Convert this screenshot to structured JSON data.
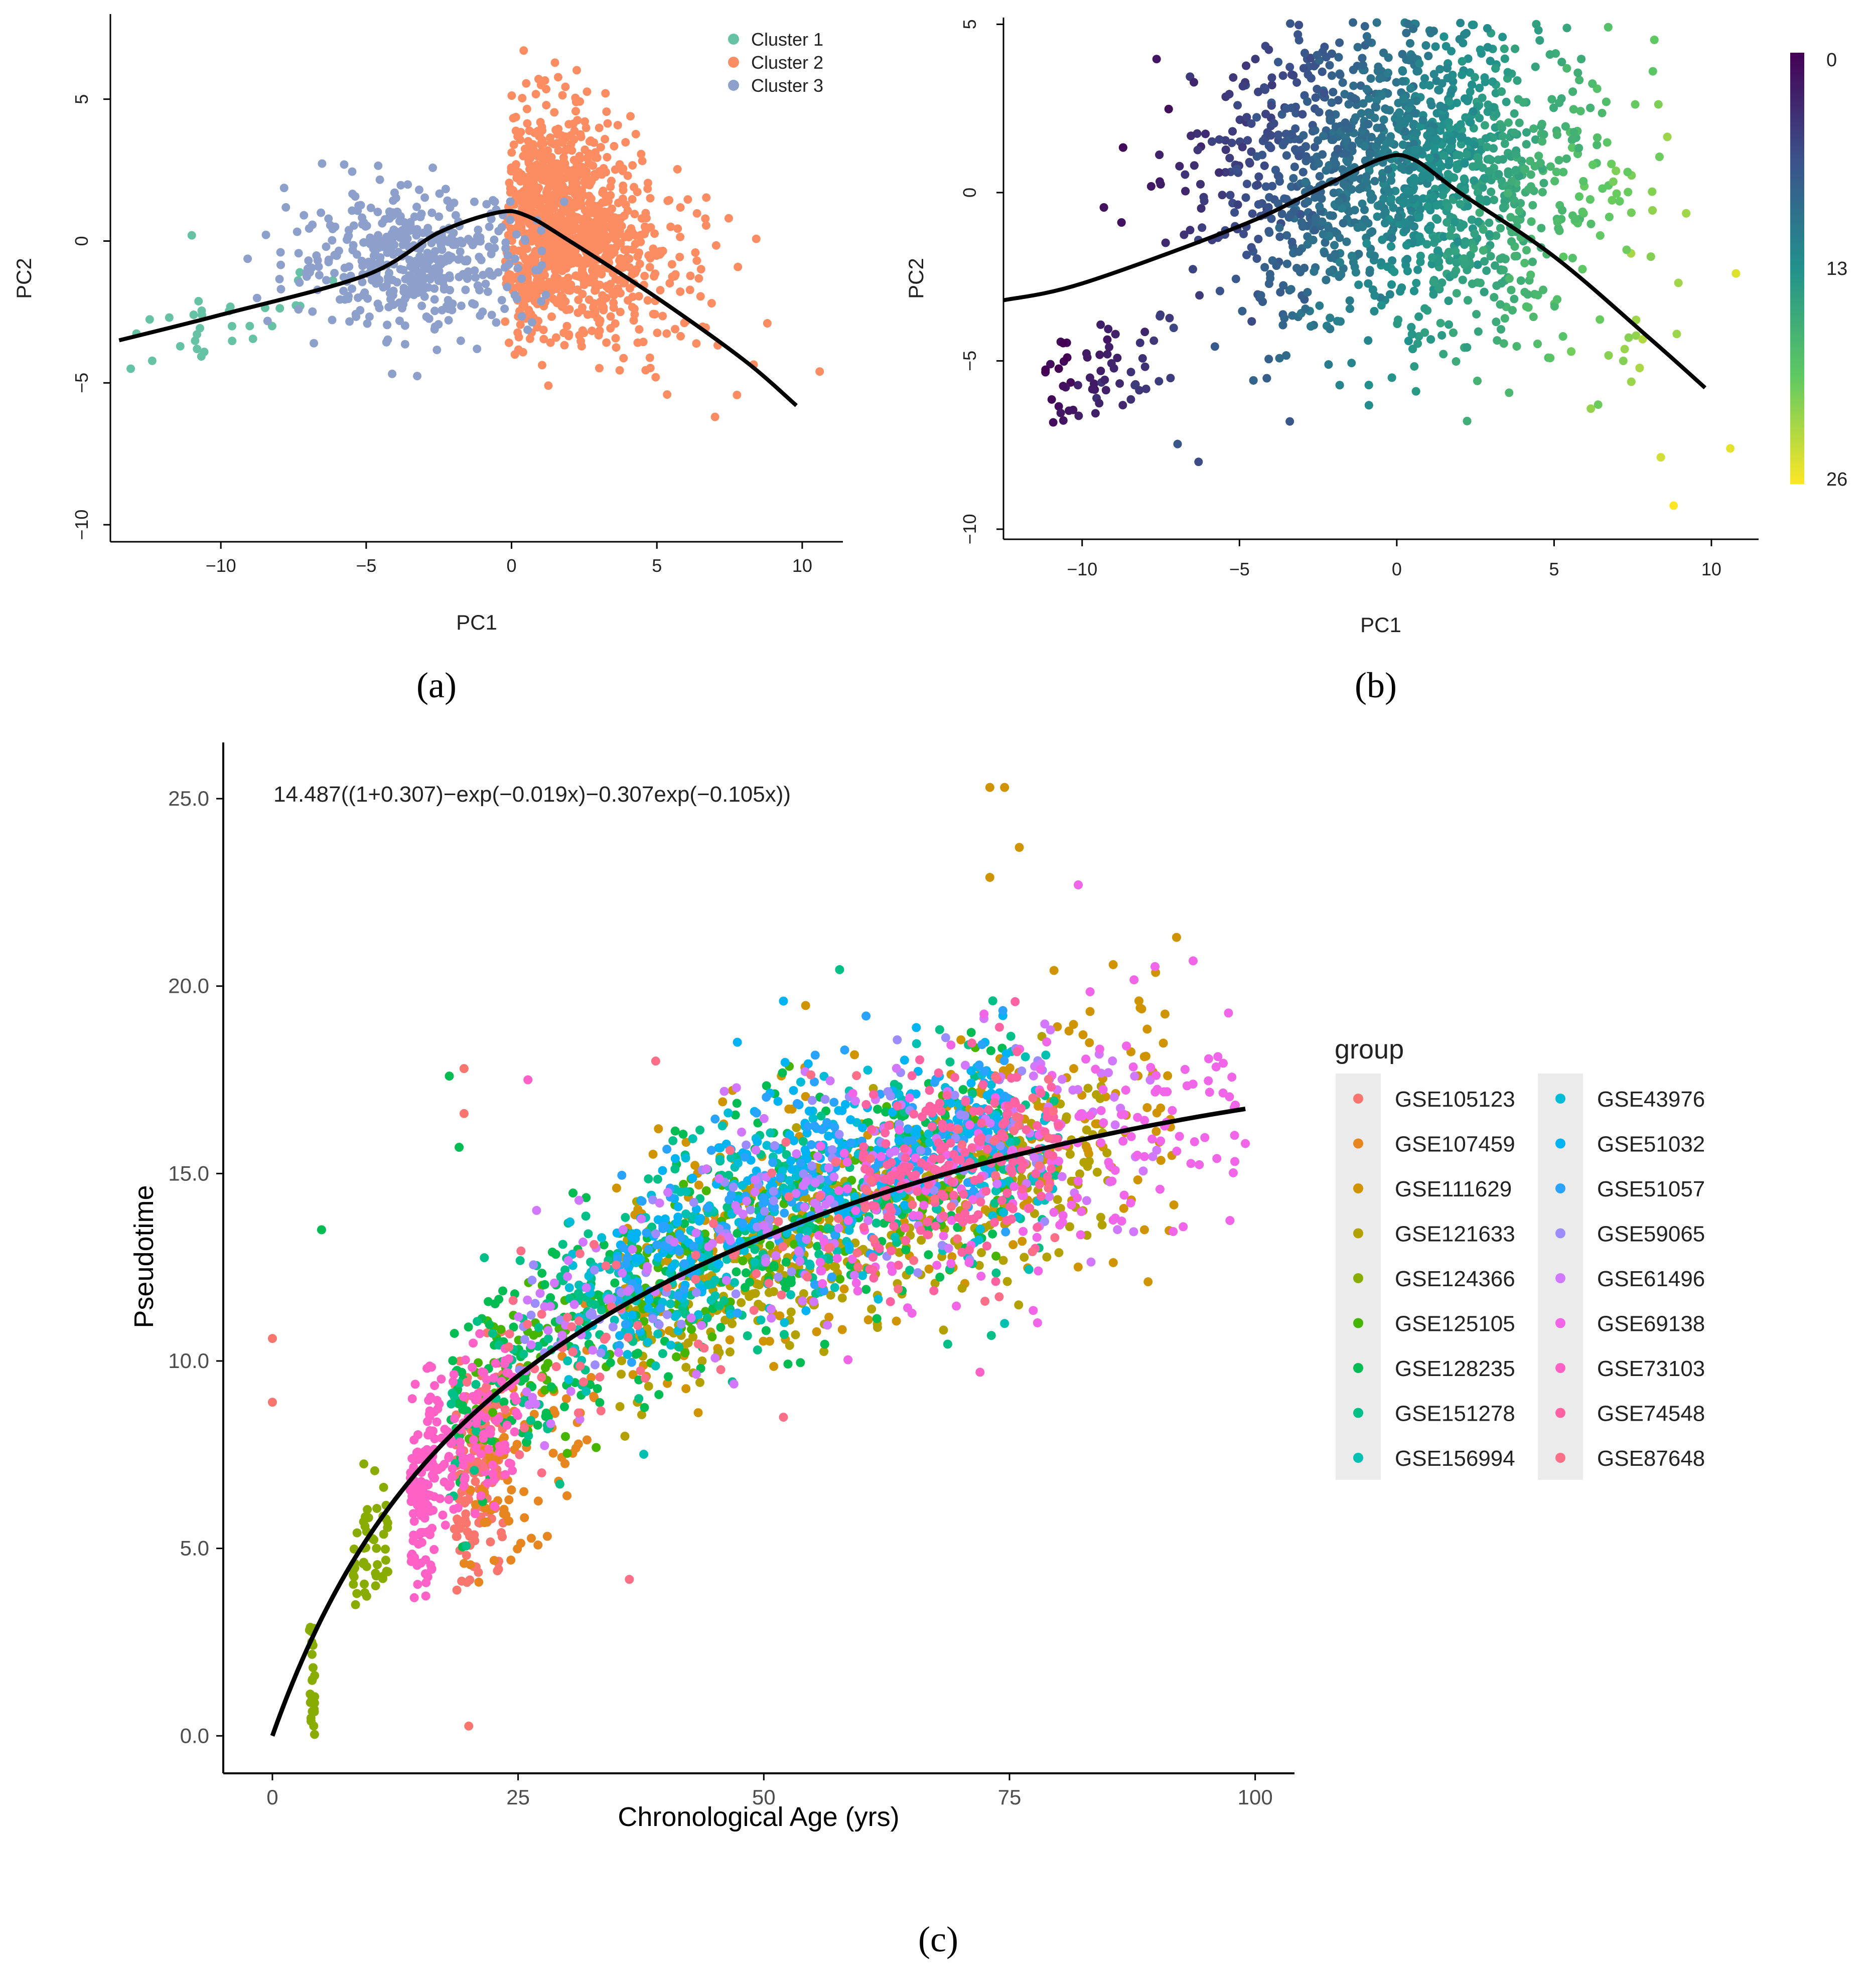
{
  "panels": {
    "a": {
      "caption": "(a)"
    },
    "b": {
      "caption": "(b)"
    },
    "c": {
      "caption": "(c)"
    }
  },
  "chart_data": [
    {
      "id": "a",
      "type": "scatter",
      "title": "",
      "xlabel": "PC1",
      "ylabel": "PC2",
      "xlim": [
        -13.8,
        11.4
      ],
      "ylim": [
        -10.6,
        8.0
      ],
      "xticks": [
        -10,
        -5,
        0,
        5,
        10
      ],
      "xtick_labels": [
        "−10",
        "−5",
        "0",
        "5",
        "10"
      ],
      "yticks": [
        -10,
        -5,
        0,
        5
      ],
      "ytick_labels": [
        "−10",
        "−5",
        "0",
        "5"
      ],
      "legend_position": "top-right",
      "series": [
        {
          "name": "Cluster 1",
          "color": "#66c2a5",
          "n": 32,
          "center": [
            -10.2,
            -2.7
          ],
          "spread": [
            2.0,
            0.9
          ]
        },
        {
          "name": "Cluster 2",
          "color": "#fc8d62",
          "n": 1150,
          "center": [
            1.6,
            0.6
          ],
          "spread": [
            2.3,
            1.9
          ]
        },
        {
          "name": "Cluster 3",
          "color": "#8da0cb",
          "n": 450,
          "center": [
            -3.4,
            -0.7
          ],
          "spread": [
            2.1,
            1.2
          ]
        }
      ],
      "outliers": [
        {
          "x": 10.6,
          "y": -4.6,
          "series": "Cluster 2"
        },
        {
          "x": 7.0,
          "y": -6.2,
          "series": "Cluster 2"
        },
        {
          "x": 8.8,
          "y": -2.9,
          "series": "Cluster 2"
        },
        {
          "x": -11.0,
          "y": 0.2,
          "series": "Cluster 1"
        },
        {
          "x": -13.1,
          "y": -4.5,
          "series": "Cluster 1"
        }
      ],
      "curve": [
        [
          -13.5,
          -3.5
        ],
        [
          -10,
          -2.6
        ],
        [
          -5,
          -1.2
        ],
        [
          -2.5,
          0.3
        ],
        [
          -0.5,
          1.0
        ],
        [
          0.5,
          0.9
        ],
        [
          2.0,
          0.0
        ],
        [
          5.0,
          -2.0
        ],
        [
          8.0,
          -4.2
        ],
        [
          9.8,
          -5.8
        ]
      ]
    },
    {
      "id": "b",
      "type": "scatter",
      "title": "",
      "xlabel": "PC1",
      "ylabel": "PC2",
      "xlim": [
        -12.5,
        11.5
      ],
      "ylim": [
        -10.3,
        5.2
      ],
      "xticks": [
        -10,
        -5,
        0,
        5,
        10
      ],
      "xtick_labels": [
        "−10",
        "−5",
        "0",
        "5",
        "10"
      ],
      "yticks": [
        -10,
        -5,
        0,
        5
      ],
      "ytick_labels": [
        "−10",
        "−5",
        "0",
        "5"
      ],
      "color_scale": {
        "name": "viridis",
        "min": 0,
        "max": 26,
        "ticks": [
          0,
          13,
          26
        ],
        "tick_labels": [
          "0",
          "13",
          "26"
        ]
      },
      "n_points": 2600,
      "cloud_center": [
        0.2,
        0.9
      ],
      "cloud_spread": [
        3.2,
        2.4
      ],
      "tail_points": {
        "n": 60,
        "x_range": [
          -11.2,
          -7.0
        ],
        "y_range": [
          -7.0,
          -4.5
        ]
      },
      "outliers": [
        {
          "x": 10.6,
          "y": -7.6,
          "value": 25
        },
        {
          "x": 8.8,
          "y": -9.3,
          "value": 26
        },
        {
          "x": 8.9,
          "y": -4.2,
          "value": 22
        },
        {
          "x": 7.2,
          "y": -5.0,
          "value": 21
        },
        {
          "x": 6.4,
          "y": -6.3,
          "value": 20
        },
        {
          "x": -6.3,
          "y": -8.0,
          "value": 6
        },
        {
          "x": -3.4,
          "y": -6.8,
          "value": 7
        }
      ],
      "curve": [
        [
          -12.5,
          -3.2
        ],
        [
          -10,
          -2.7
        ],
        [
          -5,
          -1.0
        ],
        [
          -2.5,
          0.1
        ],
        [
          -0.5,
          1.0
        ],
        [
          0.5,
          1.0
        ],
        [
          2.0,
          0.0
        ],
        [
          5.0,
          -1.9
        ],
        [
          8.0,
          -4.3
        ],
        [
          9.8,
          -5.8
        ]
      ]
    },
    {
      "id": "c",
      "type": "scatter",
      "title": "",
      "annotation": "14.487((1+0.307)−exp(−0.019x)−0.307exp(−0.105x))",
      "xlabel": "Chronological Age (yrs)",
      "ylabel": "Pseudotime",
      "xlim": [
        -5,
        104
      ],
      "ylim": [
        -1.0,
        26.5
      ],
      "xticks": [
        0,
        25,
        50,
        75,
        100
      ],
      "xtick_labels": [
        "0",
        "25",
        "50",
        "75",
        "100"
      ],
      "yticks": [
        0,
        5,
        10,
        15,
        20,
        25
      ],
      "ytick_labels": [
        "0.0",
        "5.0",
        "10.0",
        "15.0",
        "20.0",
        "25.0"
      ],
      "legend_title": "group",
      "legend_position": "right",
      "fit": {
        "a": 14.487,
        "b": 0.307,
        "k1": 0.019,
        "k2": 0.105,
        "x_range": [
          0,
          99
        ]
      },
      "series": [
        {
          "name": "GSE105123",
          "color": "#F8766D",
          "n": 160,
          "age_range": [
            18.5,
            23.5
          ],
          "offset": -1.5,
          "jitter": 1.4
        },
        {
          "name": "GSE107459",
          "color": "#E7851E",
          "n": 80,
          "age_range": [
            20,
            33
          ],
          "offset": -2.2,
          "jitter": 1.3
        },
        {
          "name": "GSE111629",
          "color": "#D09400",
          "n": 280,
          "age_range": [
            35,
            92
          ],
          "offset": 0.3,
          "jitter": 1.9
        },
        {
          "name": "GSE121633",
          "color": "#B2A100",
          "n": 360,
          "age_range": [
            35,
            85
          ],
          "offset": -0.7,
          "jitter": 1.3
        },
        {
          "name": "GSE124366",
          "color": "#89AC00",
          "n": 70,
          "age_range": [
            4,
            12
          ],
          "offset": -0.3,
          "jitter": 1.0
        },
        {
          "name": "GSE125105",
          "color": "#45B500",
          "n": 200,
          "age_range": [
            20,
            75
          ],
          "offset": 0.0,
          "jitter": 1.2
        },
        {
          "name": "GSE128235",
          "color": "#00BC51",
          "n": 300,
          "age_range": [
            18,
            75
          ],
          "offset": 0.2,
          "jitter": 1.6
        },
        {
          "name": "GSE151278",
          "color": "#00C087",
          "n": 260,
          "age_range": [
            18,
            80
          ],
          "offset": 0.3,
          "jitter": 1.6
        },
        {
          "name": "GSE156994",
          "color": "#00C0B2",
          "n": 150,
          "age_range": [
            30,
            80
          ],
          "offset": 0.1,
          "jitter": 1.4
        },
        {
          "name": "GSE43976",
          "color": "#00BCD6",
          "n": 150,
          "age_range": [
            30,
            80
          ],
          "offset": 0.8,
          "jitter": 1.4
        },
        {
          "name": "GSE51032",
          "color": "#00B3F2",
          "n": 220,
          "age_range": [
            35,
            75
          ],
          "offset": 1.2,
          "jitter": 1.3
        },
        {
          "name": "GSE51057",
          "color": "#29A3FF",
          "n": 160,
          "age_range": [
            35,
            75
          ],
          "offset": 1.0,
          "jitter": 1.3
        },
        {
          "name": "GSE59065",
          "color": "#9C8DFF",
          "n": 120,
          "age_range": [
            25,
            80
          ],
          "offset": 0.6,
          "jitter": 1.3
        },
        {
          "name": "GSE61496",
          "color": "#D277FF",
          "n": 180,
          "age_range": [
            25,
            90
          ],
          "offset": 0.5,
          "jitter": 1.5
        },
        {
          "name": "GSE69138",
          "color": "#F166E8",
          "n": 180,
          "age_range": [
            55,
            98
          ],
          "offset": -0.2,
          "jitter": 1.6
        },
        {
          "name": "GSE73103",
          "color": "#FF61C7",
          "n": 240,
          "age_range": [
            15,
            25
          ],
          "offset": -0.5,
          "jitter": 1.2
        },
        {
          "name": "GSE74548",
          "color": "#FF62A0",
          "n": 200,
          "age_range": [
            60,
            80
          ],
          "offset": 0.3,
          "jitter": 1.3
        },
        {
          "name": "GSE87648",
          "color": "#FD6F86",
          "n": 100,
          "age_range": [
            18,
            80
          ],
          "offset": -0.2,
          "jitter": 1.5
        }
      ],
      "outliers": [
        {
          "x": 0,
          "y": 10.6,
          "series": "GSE105123"
        },
        {
          "x": 0,
          "y": 8.9,
          "series": "GSE105123"
        },
        {
          "x": 73.0,
          "y": 25.3,
          "series": "GSE111629"
        },
        {
          "x": 74.5,
          "y": 25.3,
          "series": "GSE111629"
        },
        {
          "x": 76.0,
          "y": 23.7,
          "series": "GSE111629"
        },
        {
          "x": 73.0,
          "y": 22.9,
          "series": "GSE111629"
        },
        {
          "x": 82.0,
          "y": 22.7,
          "series": "GSE69138"
        },
        {
          "x": 92.0,
          "y": 21.3,
          "series": "GSE111629"
        },
        {
          "x": 52.0,
          "y": 19.6,
          "series": "GSE51032"
        },
        {
          "x": 19.5,
          "y": 17.8,
          "series": "GSE105123"
        },
        {
          "x": 19.5,
          "y": 16.6,
          "series": "GSE105123"
        },
        {
          "x": 18.0,
          "y": 17.6,
          "series": "GSE128235"
        },
        {
          "x": 19.0,
          "y": 15.7,
          "series": "GSE128235"
        },
        {
          "x": 5.0,
          "y": 13.5,
          "series": "GSE128235"
        },
        {
          "x": 26.0,
          "y": 17.5,
          "series": "GSE73103"
        },
        {
          "x": 39.0,
          "y": 18.0,
          "series": "GSE87648"
        },
        {
          "x": 52.0,
          "y": 8.5,
          "series": "GSE87648"
        },
        {
          "x": 21.0,
          "y": 4.1,
          "series": "GSE107459"
        },
        {
          "x": 19.5,
          "y": 4.6,
          "series": "GSE107459"
        },
        {
          "x": 74.5,
          "y": 11.0,
          "series": "GSE156994"
        },
        {
          "x": 72.0,
          "y": 9.7,
          "series": "GSE73103"
        },
        {
          "x": 99.0,
          "y": 15.8,
          "series": "GSE69138"
        }
      ]
    }
  ]
}
